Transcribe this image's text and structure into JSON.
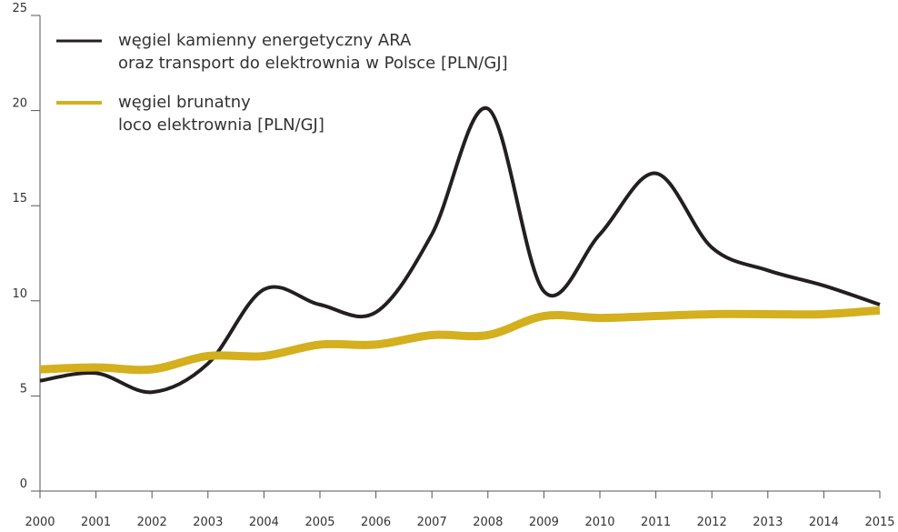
{
  "chart_data": {
    "type": "line",
    "x": [
      2000,
      2001,
      2002,
      2003,
      2004,
      2005,
      2006,
      2007,
      2008,
      2009,
      2010,
      2011,
      2012,
      2013,
      2014,
      2015
    ],
    "xlim": [
      2000,
      2015
    ],
    "xticks": [
      2000,
      2001,
      2002,
      2003,
      2004,
      2005,
      2006,
      2007,
      2008,
      2009,
      2010,
      2011,
      2012,
      2013,
      2014,
      2015
    ],
    "ylim": [
      0,
      25
    ],
    "yticks": [
      0,
      5,
      10,
      15,
      20,
      25
    ],
    "series": [
      {
        "name": "węgiel kamienny energetyczny ARA\noraz transport do elektrownia w Polsce [PLN/GJ]",
        "color": "#231f20",
        "width": 4,
        "values": [
          5.8,
          6.2,
          5.2,
          6.7,
          10.6,
          9.8,
          9.4,
          13.5,
          20.1,
          10.5,
          13.5,
          16.7,
          12.8,
          11.6,
          10.8,
          9.8
        ]
      },
      {
        "name": "węgiel brunatny\nloco elektrownia [PLN/GJ]",
        "color": "#d4af1e",
        "width": 9,
        "values": [
          6.4,
          6.5,
          6.4,
          7.1,
          7.1,
          7.7,
          7.7,
          8.2,
          8.2,
          9.2,
          9.1,
          9.2,
          9.3,
          9.3,
          9.3,
          9.5
        ]
      }
    ]
  }
}
